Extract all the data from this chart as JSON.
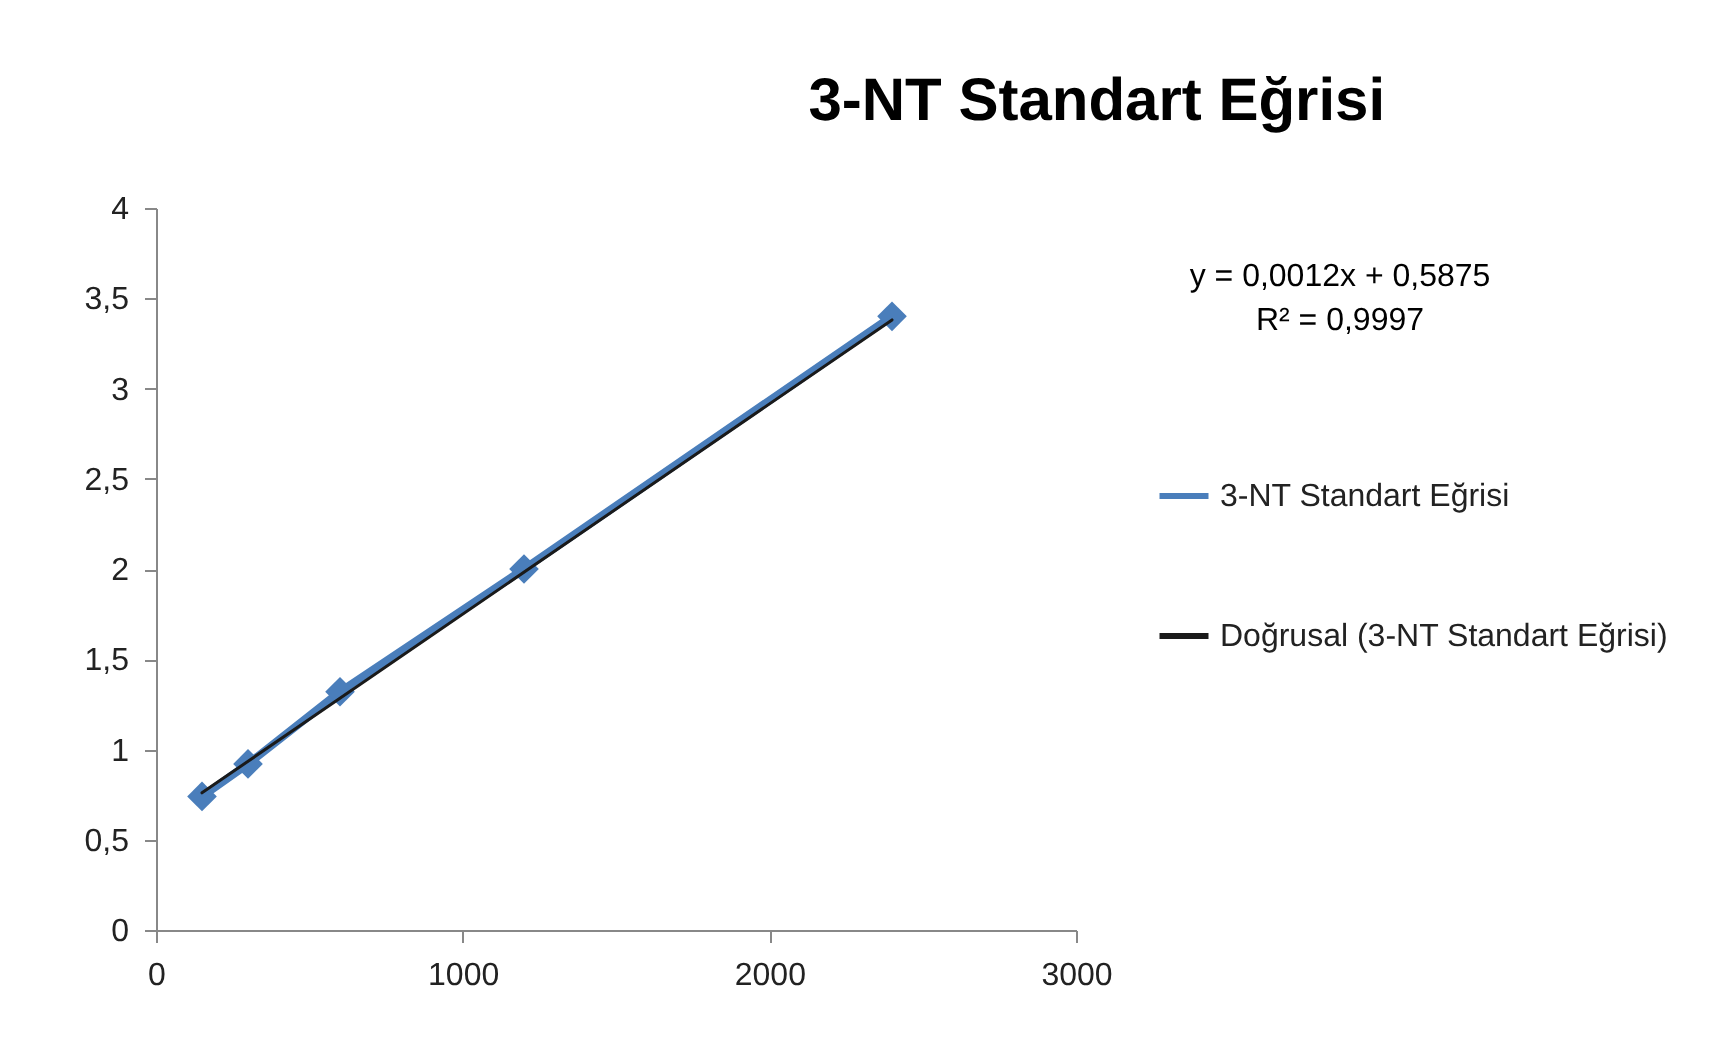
{
  "chart_data": {
    "type": "line",
    "title": "3-NT Standart Eğrisi",
    "x": [
      150,
      300,
      600,
      1200,
      2400
    ],
    "series": [
      {
        "name": "3-NT Standart Eğrisi",
        "color": "#4a7ebb",
        "values": [
          0.74,
          0.92,
          1.32,
          2.0,
          3.4
        ]
      },
      {
        "name": "Doğrusal (3-NT Standart Eğrisi)",
        "color": "#1a1a1a",
        "x": [
          150,
          2400
        ],
        "values": [
          0.76,
          3.38
        ],
        "marker": "none"
      }
    ],
    "xlim": [
      0,
      3000
    ],
    "xticks": [
      0,
      1000,
      2000,
      3000
    ],
    "ylim": [
      0,
      4
    ],
    "yticks": [
      0,
      {
        "value": 0.5,
        "label": "0,5"
      },
      1,
      {
        "value": 1.5,
        "label": "1,5"
      },
      2,
      {
        "value": 2.5,
        "label": "2,5"
      },
      3,
      {
        "value": 3.5,
        "label": "3,5"
      },
      4
    ],
    "marker": "diamond",
    "legend": "right",
    "grid": false,
    "annotations": [
      "y = 0,0012x + 0,5875",
      "R² = 0,9997"
    ]
  }
}
